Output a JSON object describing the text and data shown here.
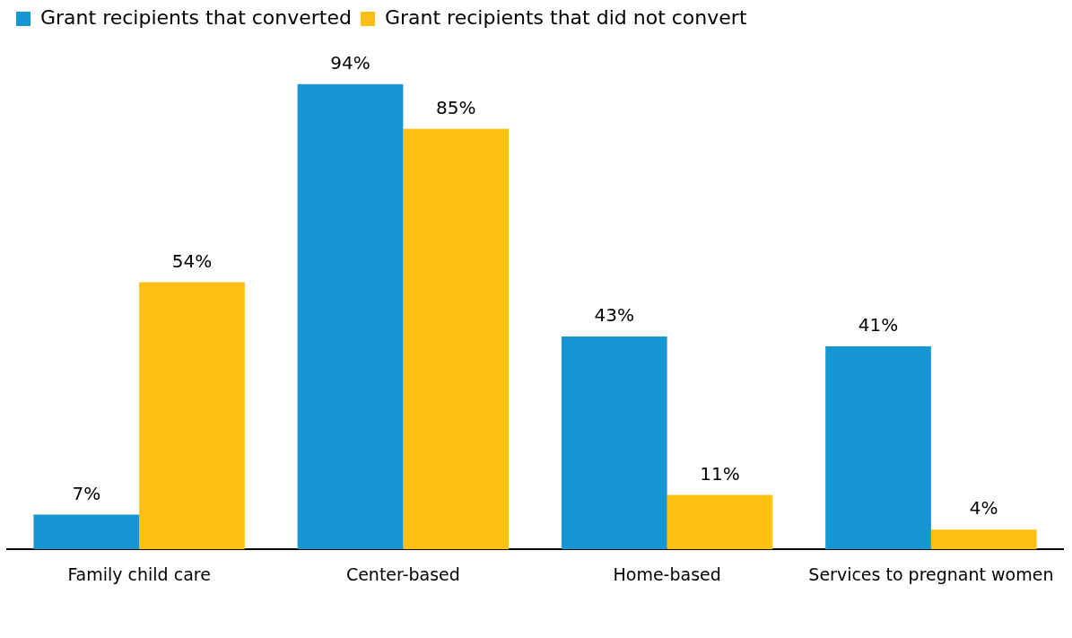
{
  "chart_data": {
    "type": "bar",
    "categories": [
      "Family child care",
      "Center-based",
      "Home-based",
      "Services to pregnant women"
    ],
    "series": [
      {
        "name": "Grant recipients that converted",
        "color": "#1696d2",
        "values": [
          7,
          94,
          43,
          41
        ],
        "value_labels": [
          "7%",
          "94%",
          "43%",
          "41%"
        ]
      },
      {
        "name": "Grant recipients that did not convert",
        "color": "#fdbf11",
        "values": [
          54,
          85,
          11,
          4
        ],
        "value_labels": [
          "54%",
          "85%",
          "11%",
          "4%"
        ]
      }
    ],
    "legend": "top left",
    "grid": false
  }
}
